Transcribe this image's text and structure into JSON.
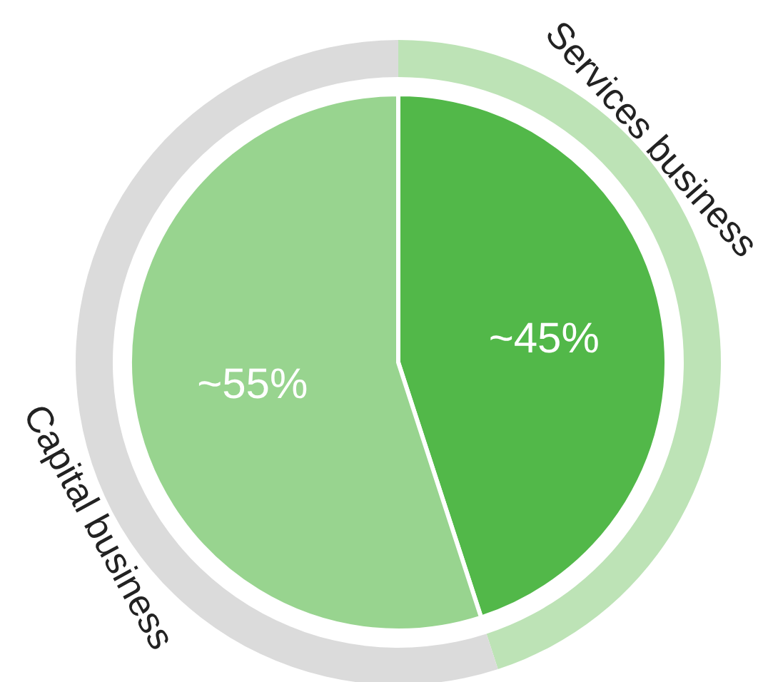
{
  "chart_data": {
    "type": "pie",
    "categories": [
      "Services business",
      "Capital business"
    ],
    "series": [
      {
        "type": "donut",
        "values": [
          45,
          55
        ],
        "colors": [
          "#bde3b6",
          "#dbdbdb"
        ]
      },
      {
        "type": "pie",
        "values": [
          45,
          55
        ],
        "colors": [
          "#52b849",
          "#98d48f"
        ],
        "value_labels": [
          "~45%",
          "~55%"
        ]
      }
    ]
  }
}
